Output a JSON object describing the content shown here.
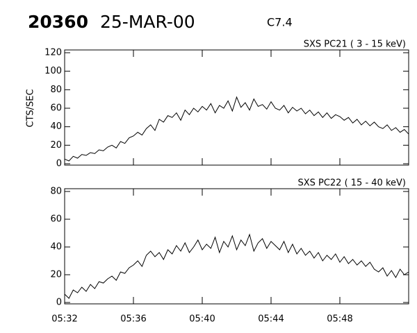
{
  "header": {
    "event": "20360",
    "date": "25-MAR-00",
    "class": "C7.4"
  },
  "chart_data": [
    {
      "type": "line",
      "title": "SXS PC21  (  3 - 15 keV)",
      "ylabel": "CTS/SEC",
      "x": [
        332,
        332.25,
        332.5,
        332.75,
        333,
        333.25,
        333.5,
        333.75,
        334,
        334.25,
        334.5,
        334.75,
        335,
        335.25,
        335.5,
        335.75,
        336,
        336.25,
        336.5,
        336.75,
        337,
        337.25,
        337.5,
        337.75,
        338,
        338.25,
        338.5,
        338.75,
        339,
        339.25,
        339.5,
        339.75,
        340,
        340.25,
        340.5,
        340.75,
        341,
        341.25,
        341.5,
        341.75,
        342,
        342.25,
        342.5,
        342.75,
        343,
        343.25,
        343.5,
        343.75,
        344,
        344.25,
        344.5,
        344.75,
        345,
        345.25,
        345.5,
        345.75,
        346,
        346.25,
        346.5,
        346.75,
        347,
        347.25,
        347.5,
        347.75,
        348,
        348.25,
        348.5,
        348.75,
        349,
        349.25,
        349.5,
        349.75,
        350,
        350.25,
        350.5,
        350.75,
        351,
        351.25,
        351.5,
        351.75,
        352
      ],
      "series": [
        {
          "color": "#000000",
          "values": [
            5,
            3,
            8,
            6,
            10,
            9,
            12,
            11,
            15,
            14,
            18,
            20,
            17,
            24,
            22,
            28,
            30,
            34,
            31,
            38,
            42,
            36,
            48,
            45,
            52,
            50,
            55,
            47,
            58,
            53,
            60,
            56,
            62,
            58,
            65,
            55,
            63,
            60,
            68,
            57,
            72,
            61,
            66,
            58,
            70,
            62,
            64,
            59,
            67,
            60,
            58,
            63,
            55,
            61,
            57,
            60,
            54,
            58,
            52,
            56,
            50,
            55,
            49,
            53,
            51,
            47,
            50,
            44,
            48,
            42,
            46,
            41,
            45,
            40,
            38,
            42,
            36,
            39,
            34,
            37,
            32
          ]
        }
      ],
      "xlim": [
        332,
        352
      ],
      "ylim": [
        0,
        120
      ],
      "yticks": [
        0,
        20,
        40,
        60,
        80,
        100,
        120
      ]
    },
    {
      "type": "line",
      "title": "SXS PC22  ( 15 - 40 keV)",
      "x": [
        332,
        332.25,
        332.5,
        332.75,
        333,
        333.25,
        333.5,
        333.75,
        334,
        334.25,
        334.5,
        334.75,
        335,
        335.25,
        335.5,
        335.75,
        336,
        336.25,
        336.5,
        336.75,
        337,
        337.25,
        337.5,
        337.75,
        338,
        338.25,
        338.5,
        338.75,
        339,
        339.25,
        339.5,
        339.75,
        340,
        340.25,
        340.5,
        340.75,
        341,
        341.25,
        341.5,
        341.75,
        342,
        342.25,
        342.5,
        342.75,
        343,
        343.25,
        343.5,
        343.75,
        344,
        344.25,
        344.5,
        344.75,
        345,
        345.25,
        345.5,
        345.75,
        346,
        346.25,
        346.5,
        346.75,
        347,
        347.25,
        347.5,
        347.75,
        348,
        348.25,
        348.5,
        348.75,
        349,
        349.25,
        349.5,
        349.75,
        350,
        350.25,
        350.5,
        350.75,
        351,
        351.25,
        351.5,
        351.75,
        352
      ],
      "series": [
        {
          "color": "#000000",
          "values": [
            6,
            3,
            9,
            7,
            11,
            8,
            13,
            10,
            15,
            14,
            17,
            19,
            16,
            22,
            21,
            25,
            27,
            30,
            26,
            34,
            37,
            33,
            36,
            31,
            38,
            35,
            41,
            37,
            43,
            36,
            40,
            45,
            38,
            42,
            39,
            47,
            36,
            44,
            40,
            48,
            38,
            45,
            41,
            49,
            37,
            43,
            46,
            39,
            44,
            41,
            38,
            44,
            36,
            42,
            35,
            39,
            34,
            37,
            32,
            36,
            30,
            34,
            31,
            35,
            29,
            33,
            28,
            31,
            27,
            30,
            26,
            29,
            24,
            22,
            25,
            19,
            23,
            18,
            24,
            20,
            22
          ]
        }
      ],
      "xlim": [
        332,
        352
      ],
      "ylim": [
        0,
        80
      ],
      "yticks": [
        0,
        20,
        40,
        60,
        80
      ],
      "xticks": [
        {
          "value": 332,
          "label": "05:32"
        },
        {
          "value": 336,
          "label": "05:36"
        },
        {
          "value": 340,
          "label": "05:40"
        },
        {
          "value": 344,
          "label": "05:44"
        },
        {
          "value": 348,
          "label": "05:48"
        }
      ]
    }
  ]
}
